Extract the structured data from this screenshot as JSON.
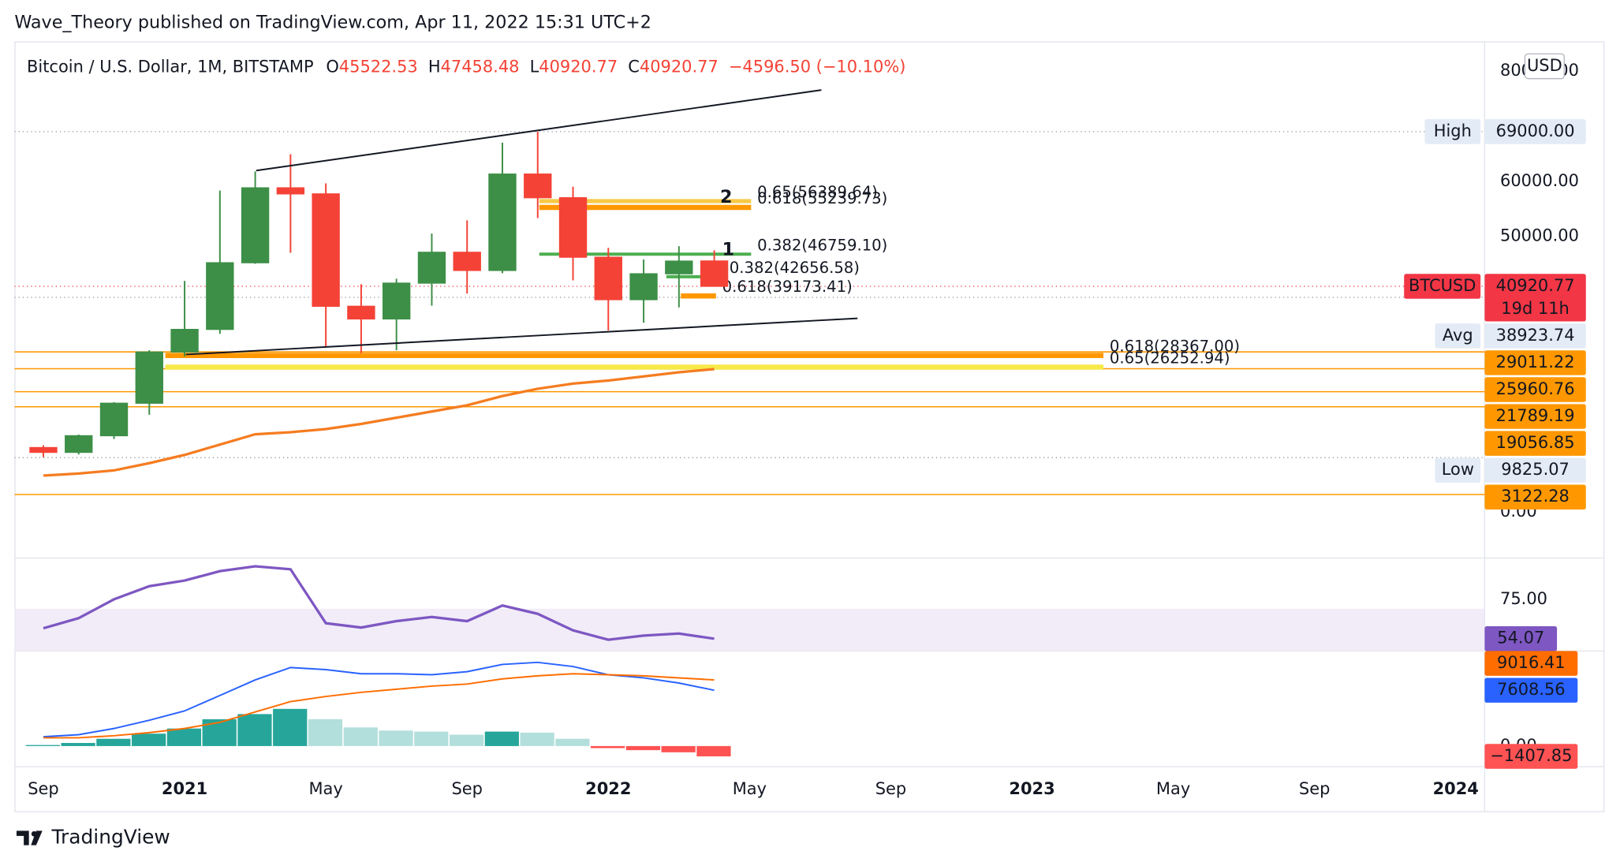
{
  "header": "Wave_Theory published on TradingView.com, Apr 11, 2022 15:31 UTC+2",
  "footer": "TradingView",
  "chart_data": {
    "type": "candlestick",
    "title": "Bitcoin / U.S. Dollar, 1M, BITSTAMP",
    "legend": [
      {
        "label": "O",
        "value": 45522.53
      },
      {
        "label": "H",
        "value": 47458.48
      },
      {
        "label": "L",
        "value": 40920.77
      },
      {
        "label": "C",
        "value": 40920.77
      }
    ],
    "change": "−4596.50 (−10.10%)",
    "currency": "USD",
    "up_color": "#3d8f47",
    "down_color": "#f44336",
    "x": [
      "2020-09",
      "2020-10",
      "2020-11",
      "2020-12",
      "2021-01",
      "2021-02",
      "2021-03",
      "2021-04",
      "2021-05",
      "2021-06",
      "2021-07",
      "2021-08",
      "2021-09",
      "2021-10",
      "2021-11",
      "2021-12",
      "2022-01",
      "2022-02",
      "2022-03",
      "2022-04"
    ],
    "open": [
      11650,
      10780,
      13800,
      19700,
      29000,
      33100,
      45200,
      58800,
      57700,
      37300,
      35000,
      41500,
      47100,
      43800,
      61300,
      57000,
      46200,
      38500,
      43200,
      45522.53
    ],
    "high": [
      12050,
      14000,
      19900,
      29300,
      41900,
      58300,
      61800,
      64900,
      59600,
      41300,
      42300,
      50500,
      52900,
      67000,
      69000,
      59000,
      47900,
      45800,
      48200,
      47458.48
    ],
    "low": [
      9900,
      10400,
      13200,
      17600,
      28200,
      32300,
      45000,
      47000,
      30000,
      28800,
      29300,
      37400,
      39600,
      43300,
      53300,
      42000,
      32900,
      34300,
      37100,
      40920.77
    ],
    "close": [
      10780,
      13800,
      19700,
      29000,
      33100,
      45200,
      58800,
      57700,
      37300,
      35000,
      41500,
      47100,
      43800,
      61300,
      57000,
      46200,
      38500,
      43200,
      45500,
      40920.77
    ],
    "ma": {
      "color": "#f57c20",
      "values": [
        6570,
        6940,
        7500,
        8820,
        10320,
        12200,
        14070,
        14450,
        15000,
        15950,
        17070,
        18200,
        19320,
        21000,
        22330,
        23260,
        23830,
        24580,
        25330,
        25890
      ]
    },
    "xlim": [
      "2020-08",
      "2024-02"
    ],
    "xticks": [
      {
        "value": "2020-09",
        "label": "Sep"
      },
      {
        "value": "2021-01",
        "label": "2021"
      },
      {
        "value": "2021-05",
        "label": "May"
      },
      {
        "value": "2021-09",
        "label": "Sep"
      },
      {
        "value": "2022-01",
        "label": "2022"
      },
      {
        "value": "2022-05",
        "label": "May"
      },
      {
        "value": "2022-09",
        "label": "Sep"
      },
      {
        "value": "2023-01",
        "label": "2023"
      },
      {
        "value": "2023-05",
        "label": "May"
      },
      {
        "value": "2023-09",
        "label": "Sep"
      },
      {
        "value": "2024-01",
        "label": "2024"
      }
    ],
    "ylim": [
      -8400,
      85000
    ],
    "yticks": [
      {
        "value": 0,
        "label": "0.00"
      },
      {
        "value": 50000,
        "label": "50000.00"
      },
      {
        "value": 60000,
        "label": "60000.00"
      },
      {
        "value": 80000,
        "label": "80000.00"
      }
    ],
    "price_labels": [
      {
        "tag": "High",
        "value": 69000,
        "label": "69000.00",
        "kind": "info"
      },
      {
        "tag": "BTCUSD",
        "value": 40920.77,
        "label": "40920.77",
        "sub": "19d 11h",
        "kind": "last"
      },
      {
        "tag": "Avg",
        "value": 38923.74,
        "label": "38923.74",
        "kind": "info"
      },
      {
        "value": 29011.22,
        "label": "29011.22",
        "kind": "level"
      },
      {
        "value": 25960.76,
        "label": "25960.76",
        "kind": "level"
      },
      {
        "value": 21789.19,
        "label": "21789.19",
        "kind": "level"
      },
      {
        "value": 19056.85,
        "label": "19056.85",
        "kind": "level"
      },
      {
        "tag": "Low",
        "value": 9825.07,
        "label": "9825.07",
        "kind": "info"
      },
      {
        "value": 3122.28,
        "label": "3122.28",
        "kind": "level"
      }
    ],
    "fibs": [
      {
        "label": "0.65(56389.64)",
        "value": 56389.64,
        "color": "#f7c948"
      },
      {
        "label": "0.618(55239.73)",
        "value": 55239.73,
        "color": "#ff9800"
      },
      {
        "label": "0.382(46759.10)",
        "value": 46759.1,
        "color": "#4caf50"
      },
      {
        "label": "0.382(42656.58)",
        "value": 42656.58,
        "color": "#4caf50"
      },
      {
        "label": "0.618(39173.41)",
        "value": 39173.41,
        "color": "#ff9800"
      },
      {
        "label": "0.618(28367.00)",
        "value": 28367.0,
        "color": "#ff9800"
      },
      {
        "label": "0.65(26252.94)",
        "value": 26252.94,
        "color": "#f7e948"
      }
    ],
    "wave_labels": [
      "2",
      "1"
    ],
    "rsi": {
      "color": "#7e57c2",
      "band": [
        30,
        70
      ],
      "ylim": [
        47.5,
        97
      ],
      "yticks": [
        {
          "value": 75,
          "label": "75.00"
        }
      ],
      "values": [
        59.6,
        65,
        75,
        82,
        85,
        90,
        92.6,
        91,
        62.3,
        60,
        63.4,
        65.6,
        63.4,
        71.7,
        67.3,
        58.5,
        53.5,
        55.7,
        56.8,
        54.07
      ]
    },
    "macd": {
      "ylim": [
        -2535,
        12960
      ],
      "yticks": [
        {
          "value": 0,
          "label": "0.00"
        }
      ],
      "macd": {
        "color": "#2962ff",
        "values": [
          1270,
          1550,
          2400,
          3520,
          4790,
          6900,
          9010,
          10700,
          10420,
          9860,
          9860,
          9720,
          10140,
          11130,
          11410,
          10850,
          9720,
          9300,
          8590,
          7608.56
        ]
      },
      "signal": {
        "color": "#ff6d00",
        "values": [
          1130,
          1130,
          1410,
          1830,
          2400,
          3240,
          4650,
          6060,
          6760,
          7320,
          7750,
          8170,
          8450,
          9150,
          9580,
          9860,
          9720,
          9580,
          9300,
          9016.41
        ]
      },
      "hist": {
        "values": [
          140,
          420,
          990,
          1690,
          2390,
          3660,
          4360,
          5070,
          3660,
          2540,
          2110,
          1970,
          1550,
          1970,
          1830,
          990,
          -280,
          -560,
          -850,
          -1407.85
        ],
        "last_label": "−1407.85"
      }
    }
  }
}
